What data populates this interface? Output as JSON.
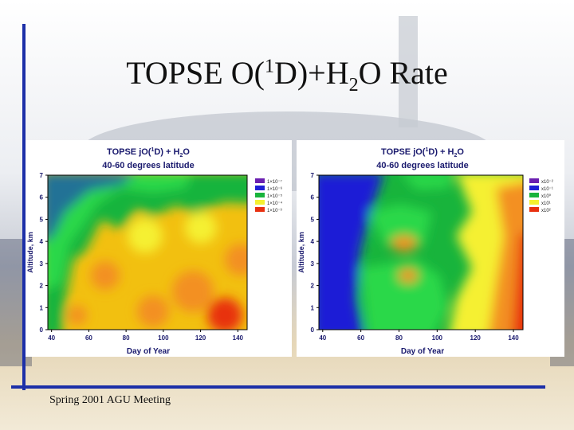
{
  "slide": {
    "title_prefix": "TOPSE O(",
    "title_sup": "1",
    "title_mid": "D)+H",
    "title_sub": "2",
    "title_suffix": "O Rate",
    "footer": "Spring 2001 AGU Meeting"
  },
  "colors": {
    "accent_line": "#1c2fa8",
    "contour_levels": [
      "#6a1fb0",
      "#1f1fd6",
      "#18b43c",
      "#2bd84a",
      "#f5f030",
      "#f2c010",
      "#f39020",
      "#e83010"
    ]
  },
  "chart_data": [
    {
      "type": "heatmap",
      "title_line1_prefix": "TOPSE jO(",
      "title_line1_sup": "1",
      "title_line1_mid": "D) + H",
      "title_line1_sub": "2",
      "title_line1_suffix": "O",
      "title_line2": "40-60 degrees latitude",
      "xlabel": "Day of Year",
      "ylabel": "Altitude, km",
      "xlim": [
        38,
        145
      ],
      "ylim": [
        0,
        7
      ],
      "x_ticks": [
        "40",
        "60",
        "80",
        "100",
        "120",
        "140"
      ],
      "y_ticks": [
        "0",
        "1",
        "2",
        "3",
        "4",
        "5",
        "6",
        "7"
      ],
      "legend_position": "right",
      "legend": [
        "1×10⁻⁷",
        "1×10⁻⁶",
        "1×10⁻⁵",
        "1×10⁻⁴",
        "1×10⁻³"
      ],
      "legend_colors": [
        "#6a1fb0",
        "#1f1fd6",
        "#18b43c",
        "#f5f030",
        "#e83010"
      ]
    },
    {
      "type": "heatmap",
      "title_line1_prefix": "TOPSE jO(",
      "title_line1_sup": "1",
      "title_line1_mid": "D) + H",
      "title_line1_sub": "2",
      "title_line1_suffix": "O",
      "title_line2": "40-60 degrees latitude",
      "xlabel": "Day of Year",
      "ylabel": "Altitude, km",
      "xlim": [
        38,
        145
      ],
      "ylim": [
        0,
        7
      ],
      "x_ticks": [
        "40",
        "60",
        "80",
        "100",
        "120",
        "140"
      ],
      "y_ticks": [
        "0",
        "1",
        "2",
        "3",
        "4",
        "5",
        "6",
        "7"
      ],
      "legend_position": "right",
      "legend": [
        "x10⁻²",
        "x10⁻¹",
        "x10⁰",
        "x10¹",
        "x10²"
      ],
      "legend_colors": [
        "#6a1fb0",
        "#1f1fd6",
        "#18b43c",
        "#f5f030",
        "#e83010"
      ]
    }
  ]
}
